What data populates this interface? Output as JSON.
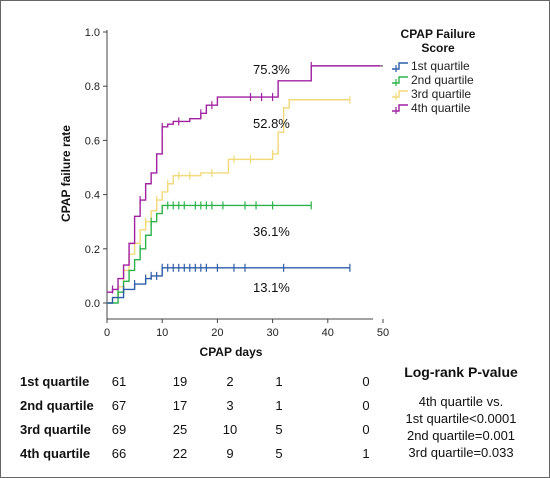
{
  "chart_data": {
    "type": "line",
    "subtype": "kaplan-meier step (cumulative failure)",
    "xlabel": "CPAP days",
    "ylabel": "CPAP failure rate",
    "xlim": [
      0,
      50
    ],
    "ylim": [
      0,
      1.0
    ],
    "x_ticks": [
      "0",
      "10",
      "20",
      "30",
      "40",
      "50"
    ],
    "y_ticks": [
      "0.0",
      "0.2",
      "0.4",
      "0.6",
      "0.8",
      "1.0"
    ],
    "grid": false,
    "legend": {
      "title": "CPAP Failure Score",
      "title_lines": [
        "CPAP Failure",
        "Score"
      ],
      "placement": "top-right"
    },
    "series": [
      {
        "name": "1st quartile",
        "color": "#2e5ea8",
        "final_label": "13.1%",
        "steps": [
          [
            0,
            0
          ],
          [
            1,
            0.02
          ],
          [
            3,
            0.05
          ],
          [
            5,
            0.07
          ],
          [
            7,
            0.09
          ],
          [
            8,
            0.1
          ],
          [
            10,
            0.13
          ],
          [
            44,
            0.13
          ]
        ],
        "censor_x": [
          3,
          5,
          7,
          8,
          9,
          10,
          11,
          12,
          13,
          14,
          15,
          16,
          17,
          18,
          20,
          23,
          25,
          32,
          44
        ]
      },
      {
        "name": "2nd quartile",
        "color": "#2db34a",
        "final_label": "36.1%",
        "steps": [
          [
            0,
            0
          ],
          [
            2,
            0.04
          ],
          [
            3,
            0.08
          ],
          [
            4,
            0.12
          ],
          [
            5,
            0.16
          ],
          [
            6,
            0.2
          ],
          [
            7,
            0.25
          ],
          [
            8,
            0.3
          ],
          [
            9,
            0.33
          ],
          [
            10,
            0.36
          ],
          [
            37,
            0.36
          ]
        ],
        "censor_x": [
          2,
          6,
          8,
          11,
          12,
          13,
          14,
          16,
          17,
          18,
          19,
          21,
          25,
          27,
          30,
          37
        ]
      },
      {
        "name": "3rd quartile",
        "color": "#f2d97a",
        "final_label": "52.8%",
        "steps": [
          [
            0,
            0
          ],
          [
            1,
            0.02
          ],
          [
            2,
            0.06
          ],
          [
            3,
            0.12
          ],
          [
            4,
            0.18
          ],
          [
            5,
            0.22
          ],
          [
            6,
            0.27
          ],
          [
            7,
            0.3
          ],
          [
            8,
            0.34
          ],
          [
            9,
            0.38
          ],
          [
            10,
            0.41
          ],
          [
            11,
            0.44
          ],
          [
            12,
            0.47
          ],
          [
            17,
            0.48
          ],
          [
            22,
            0.53
          ],
          [
            30,
            0.55
          ],
          [
            31,
            0.63
          ],
          [
            32,
            0.72
          ],
          [
            33,
            0.75
          ],
          [
            44,
            0.75
          ]
        ],
        "censor_x": [
          4,
          7,
          9,
          11,
          13,
          15,
          19,
          23,
          26,
          30,
          44
        ]
      },
      {
        "name": "4th quartile",
        "color": "#a020a0",
        "final_label": "75.3%",
        "steps": [
          [
            0,
            0.04
          ],
          [
            1,
            0.05
          ],
          [
            2,
            0.09
          ],
          [
            3,
            0.14
          ],
          [
            4,
            0.22
          ],
          [
            5,
            0.32
          ],
          [
            6,
            0.38
          ],
          [
            7,
            0.44
          ],
          [
            8,
            0.48
          ],
          [
            9,
            0.55
          ],
          [
            10,
            0.65
          ],
          [
            11,
            0.66
          ],
          [
            12,
            0.67
          ],
          [
            15,
            0.68
          ],
          [
            17,
            0.7
          ],
          [
            18,
            0.73
          ],
          [
            20,
            0.76
          ],
          [
            31,
            0.82
          ],
          [
            37,
            0.875
          ],
          [
            49.5,
            0.875
          ]
        ],
        "censor_x": [
          1,
          6,
          10,
          13,
          17,
          19,
          26,
          28,
          30,
          37
        ]
      }
    ]
  },
  "risk_table": {
    "rows": [
      {
        "label": "1st quartile",
        "values": [
          "61",
          "19",
          "2",
          "1",
          "0"
        ]
      },
      {
        "label": "2nd quartile",
        "values": [
          "67",
          "17",
          "3",
          "1",
          "0"
        ]
      },
      {
        "label": "3rd quartile",
        "values": [
          "69",
          "25",
          "10",
          "5",
          "0"
        ]
      },
      {
        "label": "4th quartile",
        "values": [
          "66",
          "22",
          "9",
          "5",
          "1"
        ]
      }
    ]
  },
  "logrank": {
    "title": "Log-rank P-value",
    "lines": [
      "4th quartile vs.",
      "1st quartile<0.0001",
      "2nd quartile=0.001",
      "3rd quartile=0.033"
    ]
  }
}
